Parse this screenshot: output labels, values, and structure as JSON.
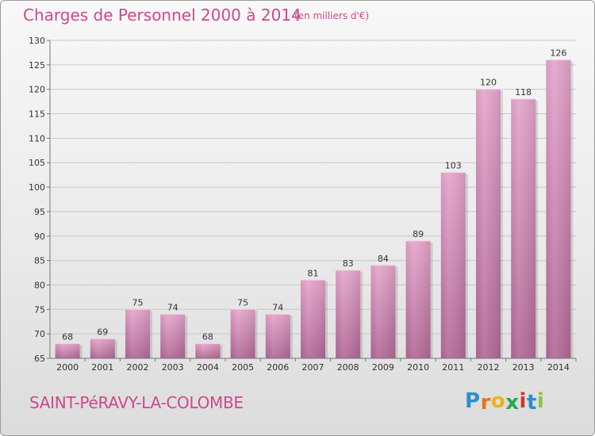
{
  "title": "Charges de Personnel 2000 à 2014",
  "subtitle": "(en milliers d'€)",
  "commune": "SAINT-PéRAVY-LA-COLOMBE",
  "logo": {
    "letters": [
      "P",
      "r",
      "o",
      "x",
      "i",
      "t",
      "i"
    ],
    "colors": [
      "#2a8fd0",
      "#e8731d",
      "#e8b51d",
      "#2aa84a",
      "#d8342a",
      "#2a8fd0",
      "#8bc43f"
    ]
  },
  "colors": {
    "title": "#d04888",
    "bar_top": "#e6a6cc",
    "bar_bottom": "#b36a98"
  },
  "chart_data": {
    "type": "bar",
    "title": "Charges de Personnel 2000 à 2014",
    "subtitle": "(en milliers d'€)",
    "xlabel": "",
    "ylabel": "",
    "categories": [
      "2000",
      "2001",
      "2002",
      "2003",
      "2004",
      "2005",
      "2006",
      "2007",
      "2008",
      "2009",
      "2010",
      "2011",
      "2012",
      "2013",
      "2014"
    ],
    "values": [
      68,
      69,
      75,
      74,
      68,
      75,
      74,
      81,
      83,
      84,
      89,
      103,
      120,
      118,
      126
    ],
    "ylim": [
      65,
      130
    ],
    "yticks": [
      65,
      70,
      75,
      80,
      85,
      90,
      95,
      100,
      105,
      110,
      115,
      120,
      125,
      130
    ],
    "grid": true,
    "legend": "none"
  }
}
